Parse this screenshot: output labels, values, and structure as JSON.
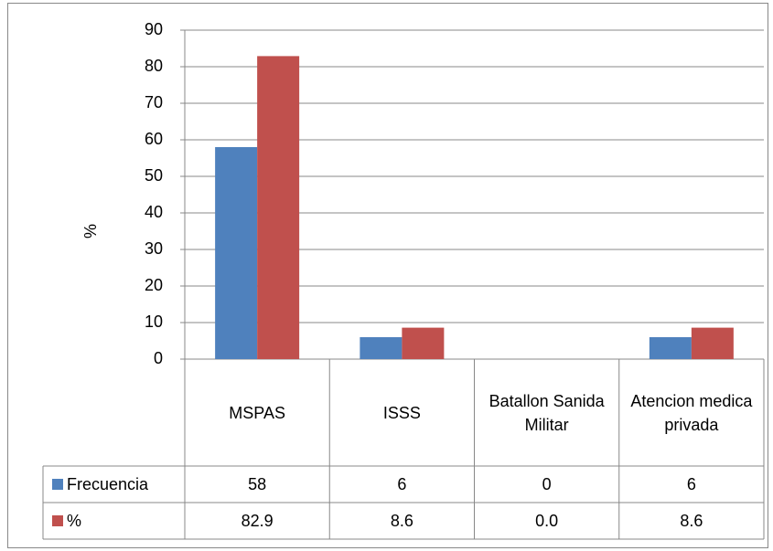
{
  "chart_data": {
    "type": "bar",
    "y_label": "%",
    "categories": [
      "MSPAS",
      "ISSS",
      "Batallon Sanida Militar",
      "Atencion medica privada"
    ],
    "series": [
      {
        "name": "Frecuencia",
        "color": "#4f81bd",
        "values": [
          58,
          6,
          0,
          6
        ]
      },
      {
        "name": "%",
        "color": "#c0504d",
        "values": [
          82.9,
          8.6,
          0,
          8.6
        ],
        "value_labels": [
          "82.9",
          "8.6",
          "0.0",
          "8.6"
        ]
      }
    ],
    "ylim": [
      0,
      90
    ],
    "yticks": [
      0,
      10,
      20,
      30,
      40,
      50,
      60,
      70,
      80,
      90
    ],
    "grid": true,
    "data_table": true
  }
}
